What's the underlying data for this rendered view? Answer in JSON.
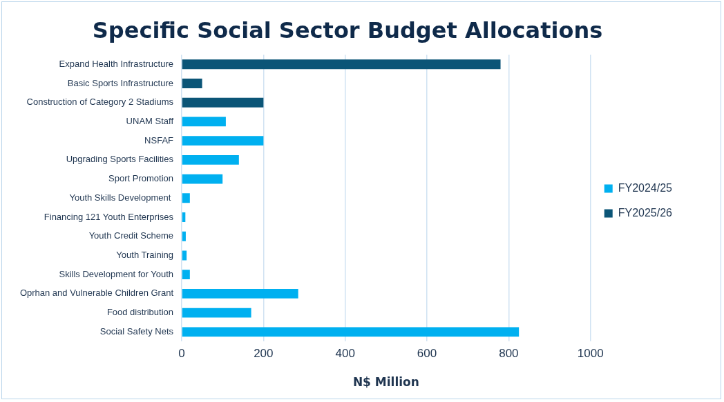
{
  "chart_data": {
    "type": "bar",
    "orientation": "horizontal",
    "title": "Specific Social Sector Budget Allocations",
    "xlabel": "N$ Million",
    "categories": [
      "Expand Health Infrastructure",
      "Basic Sports Infrastructure",
      "Construction of Category 2 Stadiums",
      "UNAM Staff",
      "NSFAF",
      "Upgrading Sports Facilities",
      "Sport Promotion",
      "Youth Skills Development ",
      "Financing 121 Youth Enterprises",
      "Youth Credit Scheme",
      "Youth Training",
      "Skills Development for Youth",
      "Oprhan and Vulnerable Children Grant",
      "Food distribution",
      "Social Safety Nets"
    ],
    "series": [
      {
        "name": "FY2024/25",
        "color": "#00b0f0",
        "values": [
          null,
          null,
          null,
          108,
          200,
          140,
          100,
          20,
          9,
          10,
          12,
          20,
          285,
          170,
          825
        ]
      },
      {
        "name": "FY2025/26",
        "color": "#0b5577",
        "values": [
          780,
          50,
          200,
          null,
          null,
          null,
          null,
          null,
          null,
          null,
          null,
          null,
          null,
          null,
          null
        ]
      }
    ],
    "xlim": [
      0,
      1000
    ],
    "xticks": [
      0,
      200,
      400,
      600,
      800,
      1000
    ],
    "grid": "x",
    "legend": "right"
  }
}
